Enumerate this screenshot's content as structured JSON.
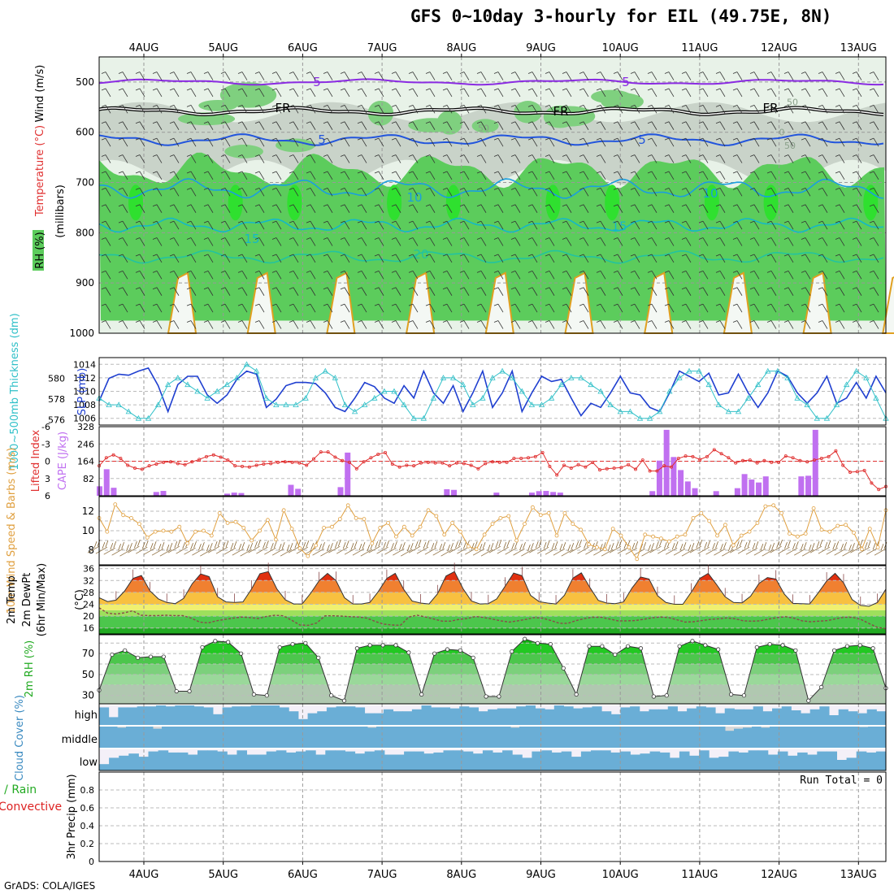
{
  "title": "GFS 0~10day 3-hourly for EIL (49.75E, 8N)",
  "footer": "GrADS: COLA/IGES",
  "dates": [
    "4AUG",
    "5AUG",
    "6AUG",
    "7AUG",
    "8AUG",
    "9AUG",
    "10AUG",
    "11AUG",
    "12AUG",
    "13AUG"
  ],
  "colors": {
    "rh_light": "#e8f2e8",
    "rh_gray": "#c9d3c9",
    "rh_mid": "#7fd07f",
    "rh_green": "#5ccc5c",
    "rh_bright": "#2fe02f",
    "wind_5": "#8a2be2",
    "freezing": "#000000",
    "temp_5": "#2255dd",
    "temp_10": "#1a9fe0",
    "temp_15": "#14b9c8",
    "temp_20": "#22c4a0",
    "temp_25": "#e0a020",
    "temp_30": "#d06010",
    "thickness": "#1f3fd0",
    "slp": "#30c0c8",
    "lifted": "#e03030",
    "cape": "#c070f0",
    "wind10m": "#e0a040",
    "barbs": "#8b6b3a",
    "dewpt": "#8b4a4a",
    "cloud": "#6aaed6",
    "cloud_bg": "#f4f0f8",
    "precip_label": "#22aa22",
    "conv_label": "#dd2222"
  },
  "chart_data": [
    {
      "type": "contour",
      "name": "upper_air_cross_section",
      "ylabel_parts": [
        "RH (%)",
        "Temperature (°C)",
        "Wind (m/s)"
      ],
      "ylabel_sub": "(millibars)",
      "yticks": [
        500,
        600,
        700,
        800,
        900,
        1000
      ],
      "ylim": [
        450,
        1000
      ],
      "contour_labels": [
        {
          "value": "5",
          "kind": "wind"
        },
        {
          "value": "5",
          "kind": "wind"
        },
        {
          "value": "FR",
          "kind": "freezing"
        },
        {
          "value": "FR",
          "kind": "freezing"
        },
        {
          "value": "FR",
          "kind": "freezing"
        },
        {
          "value": "5",
          "kind": "temp"
        },
        {
          "value": "5",
          "kind": "temp"
        },
        {
          "value": "10",
          "kind": "temp"
        },
        {
          "value": "10",
          "kind": "temp"
        },
        {
          "value": "15",
          "kind": "temp"
        },
        {
          "value": "15",
          "kind": "temp"
        },
        {
          "value": "20",
          "kind": "temp"
        },
        {
          "value": "50",
          "kind": "rh"
        },
        {
          "value": "50",
          "kind": "rh"
        },
        {
          "value": "0",
          "kind": "rh"
        },
        {
          "value": "50",
          "kind": "rh"
        }
      ]
    },
    {
      "type": "line",
      "name": "thickness_slp",
      "ylabel_left": "1000~500mb Thickness (dm)",
      "ylabel_right": "SLP (mb)",
      "left_ticks": [
        576,
        578,
        580
      ],
      "right_ticks": [
        1006,
        1008,
        1010,
        1012,
        1014
      ],
      "series": [
        {
          "name": "Thickness",
          "values": [
            577.8,
            580,
            580.4,
            580.3,
            580.7,
            581,
            579.3,
            576.8,
            579.4,
            580.2,
            580.2,
            578.4,
            577.6,
            578.4,
            579.9,
            580.7,
            580.4,
            577.2,
            578,
            579.3,
            579.6,
            579.6,
            579.5,
            578.6,
            577.2,
            576.8,
            578.1,
            579.6,
            579.2,
            578.1,
            577.6,
            579.3,
            578.1,
            580.7,
            578.6,
            577.6,
            579.3,
            576.8,
            578.6,
            580.7,
            577.2,
            578.6,
            580.7,
            576.8,
            578.6,
            580.2,
            579.7,
            579.9,
            578.1,
            576.4,
            577.6,
            577.2,
            578.6,
            580.2,
            578.6,
            578.4,
            577.2,
            576.8,
            578.6,
            580.7,
            580.2,
            579.7,
            580.5,
            578.4,
            578.6,
            580.4,
            578.6,
            577.2,
            578.6,
            580.7,
            580.2,
            578.6,
            577.6,
            578.6,
            580.2,
            577.6,
            578.1,
            579.6,
            578.1,
            580.2,
            578.6
          ]
        },
        {
          "name": "SLP",
          "values": [
            1009,
            1008,
            1008,
            1007,
            1006,
            1006,
            1008,
            1011,
            1012,
            1011,
            1010,
            1009,
            1010,
            1011,
            1012,
            1014,
            1013,
            1009,
            1008,
            1008,
            1008,
            1009,
            1012,
            1013,
            1012,
            1008,
            1007,
            1008,
            1009,
            1010,
            1010,
            1008,
            1006,
            1006,
            1009,
            1012,
            1012,
            1011,
            1008,
            1009,
            1012,
            1013,
            1012,
            1010,
            1008,
            1008,
            1009,
            1011,
            1012,
            1012,
            1011,
            1010,
            1008,
            1007,
            1007,
            1006,
            1006,
            1007,
            1010,
            1012,
            1013,
            1013,
            1011,
            1008,
            1007,
            1007,
            1009,
            1011,
            1013,
            1013,
            1012,
            1009,
            1008,
            1006,
            1006,
            1008,
            1011,
            1013,
            1012,
            1009,
            1006
          ]
        }
      ]
    },
    {
      "type": "bar+line",
      "name": "lifted_index_cape",
      "ylabel_left": "Lifted Index",
      "ylabel_right": "CAPE (J/kg)",
      "left_ticks": [
        -6,
        -3,
        0,
        3,
        6
      ],
      "right_ticks": [
        82,
        164,
        246,
        328
      ],
      "lifted_index": [
        0.8,
        -0.6,
        -1.1,
        -0.5,
        0.7,
        1.2,
        1.4,
        0.8,
        0.5,
        0.2,
        0.1,
        0.4,
        0.6,
        0.1,
        -0.3,
        -0.8,
        -1.1,
        -0.7,
        -0.2,
        0.8,
        0.9,
        1,
        0.7,
        0.5,
        0.4,
        0.2,
        0.1,
        0.2,
        0.3,
        0.7,
        -0.4,
        -1.6,
        -1.6,
        -0.7,
        -0.1,
        0.2,
        1.3,
        0.1,
        -0.6,
        -1.2,
        -1.5,
        0.5,
        1,
        0.7,
        0.8,
        0.3,
        0.2,
        0.3,
        0.3,
        0.8,
        0.3,
        0.4,
        0.7,
        1.3,
        0.4,
        0.1,
        0.2,
        0.2,
        -0.5,
        -0.5,
        -0.6,
        -0.8,
        -1.5,
        0.9,
        2.4,
        0.7,
        1.2,
        0.6,
        1,
        0.2,
        1.5,
        1.3,
        1.2,
        1.1,
        0.6,
        1.4,
        -0.2,
        1.7,
        1.7,
        0.8,
        1,
        -0.5,
        -0.9,
        -0.8,
        -0.3,
        -0.8,
        -2,
        -1.3,
        -0.6,
        0.3,
        -0.1,
        -0.2,
        0.3,
        -0.1,
        0.2,
        0.2,
        -0.9,
        -0.6,
        -0.1,
        0.1,
        -0.2,
        -0.5,
        -0.8,
        -1.8,
        0.7,
        1.9,
        1.8,
        1.6,
        3.8,
        4.9,
        4.4
      ],
      "cape": [
        45,
        126,
        38,
        0,
        0,
        0,
        0,
        0,
        18,
        23,
        0,
        0,
        0,
        0,
        0,
        0,
        0,
        0,
        10,
        15,
        13,
        0,
        0,
        0,
        0,
        0,
        0,
        52,
        33,
        0,
        0,
        0,
        0,
        0,
        41,
        205,
        0,
        0,
        0,
        0,
        0,
        0,
        0,
        0,
        0,
        0,
        0,
        0,
        0,
        31,
        28,
        0,
        0,
        0,
        0,
        0,
        15,
        0,
        0,
        0,
        0,
        15,
        22,
        23,
        18,
        15,
        0,
        0,
        0,
        0,
        0,
        0,
        0,
        0,
        0,
        0,
        0,
        0,
        22,
        167,
        313,
        184,
        122,
        68,
        36,
        0,
        0,
        22,
        0,
        0,
        36,
        103,
        77,
        63,
        92,
        0,
        0,
        0,
        0,
        92,
        95,
        313,
        0,
        0,
        0,
        0,
        0,
        0,
        0,
        0,
        0,
        0
      ]
    },
    {
      "type": "line+barbs",
      "name": "wind_10m",
      "ylabel": "10m Wind Speed & Barbs (m/s)",
      "yticks": [
        8,
        10,
        12
      ],
      "series": [
        {
          "name": "Speed",
          "values": [
            11.3,
            9.9,
            12.7,
            11.6,
            11.3,
            10.7,
            9.3,
            9.9,
            10,
            9.9,
            10.4,
            8.7,
            9.9,
            10,
            9.5,
            11.8,
            10.8,
            10.9,
            10.3,
            9,
            10,
            11.1,
            9.1,
            12.1,
            10.2,
            8.2,
            7.4,
            8.5,
            10.3,
            10.4,
            11.2,
            12.6,
            11.3,
            11.2,
            8.7,
            10.3,
            10.8,
            9.4,
            10.4,
            9.5,
            10.4,
            12.1,
            11.5,
            9.6,
            10.8,
            9.9,
            8.4,
            8.1,
            9.6,
            10.7,
            11.3,
            11.5,
            9,
            10.7,
            12.4,
            11.6,
            11.8,
            9.5,
            11.8,
            10.7,
            10.1,
            8.6,
            8.3,
            8.1,
            10.2,
            9.5,
            8.3,
            7.1,
            9.6,
            9.4,
            9.2,
            8.9,
            9.4,
            9.6,
            11.3,
            11.8,
            11,
            9.5,
            10.6,
            8.5,
            9.5,
            9.9,
            10.8,
            12.5,
            12.6,
            11.8,
            9.7,
            9.4,
            9.7,
            12.3,
            10.1,
            9.9,
            10.5,
            10.6,
            9.8,
            8.1,
            10.2,
            8.3,
            12.1
          ]
        }
      ]
    },
    {
      "type": "area",
      "name": "temp_dewpoint",
      "ylabel_parts": [
        "2m Temp",
        "2m DewPt",
        "(6hr Min/Max)",
        "(°C)"
      ],
      "yticks": [
        16,
        20,
        24,
        28,
        32,
        36
      ],
      "series": [
        {
          "name": "2m Temp",
          "values": [
            26.2,
            24.9,
            25.4,
            28.4,
            32.7,
            33.7,
            28.5,
            25.8,
            24.6,
            24.2,
            26,
            30.9,
            34.2,
            33.3,
            26.5,
            24.8,
            24.6,
            24.8,
            29.1,
            34.3,
            35,
            29.2,
            25.5,
            24.1,
            24.1,
            27.7,
            31.9,
            34.4,
            32,
            26.2,
            24.1,
            24.1,
            24.6,
            28.3,
            32.7,
            34.4,
            29,
            25.1,
            24.4,
            24.1,
            27.5,
            33.5,
            35,
            29.3,
            25.1,
            24.1,
            24.2,
            25.8,
            30.1,
            34.5,
            33.6,
            27,
            24.9,
            24.4,
            24.1,
            27,
            32.8,
            34.6,
            29.7,
            25.3,
            24.4,
            24.2,
            24.8,
            29.5,
            33.2,
            32.5,
            26.9,
            24.6,
            24,
            24,
            28.1,
            32.7,
            34.4,
            30.6,
            26.5,
            24.6,
            24.5,
            26.7,
            31,
            33,
            32.5,
            27.4,
            24.3,
            24.2,
            24.1,
            27.8,
            31.8,
            34.4,
            31.2,
            25.6,
            23.6,
            23.3,
            24.6,
            29.1
          ]
        },
        {
          "name": "2m DewPt",
          "values": [
            22.8,
            21,
            20.7,
            21.1,
            21.8,
            20.3,
            20.2,
            20.2,
            20.3,
            20.2,
            20.2,
            19.3,
            18,
            17.7,
            18.4,
            18.9,
            19.3,
            19.7,
            19.5,
            19.2,
            19.9,
            20.3,
            20.1,
            18.6,
            17,
            16.9,
            17.7,
            20.1,
            20.1,
            20,
            19.8,
            19.7,
            19.3,
            18.2,
            17.3,
            17,
            16.9,
            19.7,
            20.3,
            19.7,
            19,
            18.3,
            18.3,
            18.9,
            19.2,
            19.9,
            19.5,
            19,
            18.4,
            18,
            18.4,
            18.9,
            19.5,
            19.3,
            18.5,
            17.6,
            17.6,
            18.5,
            19.2,
            19.6,
            19.6,
            19,
            18.4,
            18.4,
            18.5,
            18.9,
            19.4,
            19.7,
            19.5,
            18.8,
            18,
            18.1,
            18.5,
            18.9,
            19.1,
            19.4,
            19.1,
            18.4,
            18.3,
            18.4,
            19,
            19.5,
            19.8,
            19.3,
            18.4,
            18.1,
            18.3,
            18.5,
            19.1,
            19.6,
            19.6,
            18.9,
            17.5,
            16.2,
            15.8
          ]
        }
      ]
    },
    {
      "type": "area",
      "name": "rh_2m",
      "ylabel": "2m RH (%)",
      "yticks": [
        30,
        50,
        70
      ],
      "series": [
        {
          "name": "2m RH",
          "values": [
            35,
            69,
            73,
            66,
            67,
            67,
            34,
            34,
            76,
            82,
            81,
            70,
            31,
            30,
            76,
            79,
            80,
            66,
            30,
            25,
            75,
            78,
            78,
            78,
            71,
            31,
            70,
            74,
            73,
            66,
            29,
            29,
            72,
            84,
            80,
            79,
            56,
            31,
            77,
            77,
            69,
            77,
            75,
            29,
            30,
            77,
            82,
            78,
            74,
            31,
            30,
            76,
            79,
            78,
            73,
            25,
            38,
            73,
            77,
            78,
            75,
            37
          ]
        }
      ]
    },
    {
      "type": "heatmap",
      "name": "cloud_cover",
      "ylabel": "Cloud Cover (%)",
      "levels": [
        "high",
        "middle",
        "low"
      ],
      "high": [
        0.9,
        0.4,
        0.9,
        0.9,
        0.95,
        0.95,
        1,
        0.95,
        1,
        1,
        0.95,
        0.9,
        0.55,
        0.9,
        0.95,
        0.95,
        1,
        1,
        1,
        0.9,
        0.7,
        0.3,
        0.6,
        0.7,
        0.9,
        0.95,
        0.95,
        0.9,
        0.6,
        0.6,
        0.8,
        0.7,
        0.7,
        0.8,
        1,
        0.9,
        0.9,
        0.85,
        0.95,
        0.9,
        0.7,
        0.8,
        0.85,
        0.85,
        0.95,
        1,
        0.85,
        0.8,
        1,
        0.95,
        0.85,
        0.9,
        0.95,
        0.7,
        0.55,
        0.9,
        0.95,
        0.7,
        0.8,
        0.8,
        0.95,
        0.7,
        0.85,
        0.95,
        0.9,
        0.6,
        0.85,
        0.8,
        0.8,
        0.95,
        0.7,
        0.85,
        0.95,
        0.75,
        0.6,
        0.8,
        0.95,
        0.5,
        0.8,
        0.7,
        0.6,
        0.8,
        0.7
      ],
      "middle": [
        1,
        1,
        0.95,
        1,
        1,
        1,
        0.9,
        1,
        1,
        1,
        1,
        1,
        1,
        1,
        1,
        1,
        1,
        1,
        1,
        1,
        1,
        1,
        1,
        1,
        1,
        1,
        1,
        1,
        1,
        1,
        0.95,
        1,
        1,
        1,
        1,
        1,
        1,
        1,
        1,
        1,
        1,
        1,
        1,
        1,
        1,
        1,
        0.95,
        1,
        1,
        1,
        1,
        1,
        1,
        1,
        1,
        1,
        1,
        1,
        1,
        1,
        1,
        1,
        1,
        1,
        1,
        1,
        1,
        1,
        1,
        1,
        0.8,
        0.9,
        0.95,
        1,
        0.95,
        1,
        1,
        1,
        1,
        1,
        1,
        1,
        1,
        1,
        1,
        0.98,
        1,
        1
      ],
      "low": [
        0.3,
        0.6,
        0.7,
        0.8,
        0.65,
        0.9,
        0.95,
        0.85,
        0.85,
        0.75,
        0.95,
        0.95,
        0.9,
        0.75,
        0.95,
        0.75,
        0.75,
        0.9,
        0.95,
        0.85,
        0.9,
        0.95,
        0.75,
        0.95,
        0.95,
        0.9,
        0.8,
        0.9,
        0.95,
        0.75,
        0.75,
        0.9,
        0.9,
        0.8,
        0.85,
        0.95,
        0.95,
        0.9,
        0.8,
        0.95,
        0.85,
        0.95,
        0.75,
        0.6,
        0.9,
        0.95,
        0.85,
        0.9,
        0.65,
        0.9,
        0.95,
        0.95,
        0.85,
        0.9,
        0.75,
        0.8,
        0.9,
        0.85,
        0.6,
        0.9,
        0.7,
        0.95,
        0.6,
        0.65,
        0.9,
        0.85,
        0.95,
        0.95,
        0.75,
        0.9,
        0.7,
        0.85,
        0.75,
        0.9,
        0.9,
        0.5,
        0.6,
        0.9,
        0.85,
        0.9
      ]
    },
    {
      "type": "bar",
      "name": "precip_3hr",
      "ylabel": "3hr Precip (mm)",
      "legend_total": "Total / Rain",
      "legend_conv": "Convective",
      "yticks": [
        0,
        0.2,
        0.4,
        0.6,
        0.8
      ],
      "ylim": [
        0,
        1
      ],
      "run_total": "Run Total = 0",
      "values": []
    }
  ]
}
